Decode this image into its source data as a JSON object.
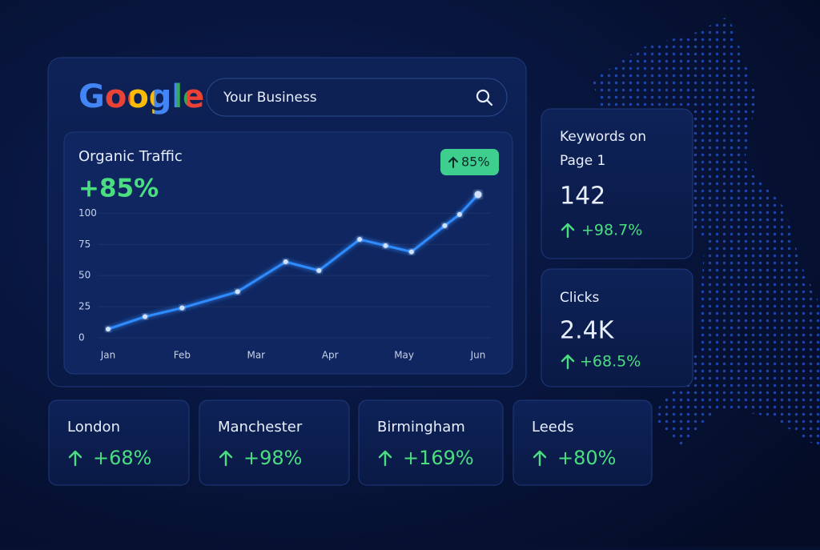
{
  "header": {
    "logo": "Google",
    "search": "Your Business"
  },
  "chart_data": {
    "type": "line",
    "title": "Organic Traffic",
    "subtitle": "+85%",
    "badge": "85%",
    "x": [
      0,
      0.5,
      1,
      1.75,
      2.4,
      2.85,
      3.4,
      3.75,
      4.1,
      4.55,
      4.75,
      5
    ],
    "series": [
      {
        "color": "#2f8cff",
        "values": [
          7,
          17,
          24,
          37,
          61,
          54,
          79,
          74,
          69,
          90,
          99,
          115
        ]
      }
    ],
    "xlim": [
      0,
      5
    ],
    "xticks": [
      {
        "value": 0,
        "label": "Jan"
      },
      {
        "value": 1,
        "label": "Feb"
      },
      {
        "value": 2,
        "label": "Mar"
      },
      {
        "value": 3,
        "label": "Apr"
      },
      {
        "value": 4,
        "label": "May"
      },
      {
        "value": 5,
        "label": "Jun"
      }
    ],
    "ylim": [
      0,
      115
    ],
    "yticks": [
      0,
      25,
      50,
      75,
      100
    ],
    "grid": true
  },
  "stats": [
    {
      "label": "Keywords on",
      "label2": "Page 1",
      "value": "142",
      "change": "+98.7%"
    },
    {
      "label": "Clicks",
      "value": "2.4K",
      "change": "+68.5%"
    }
  ],
  "cities": [
    {
      "name": "London",
      "change": "+68%"
    },
    {
      "name": "Manchester",
      "change": "+98%"
    },
    {
      "name": "Birmingham",
      "change": "+169%"
    },
    {
      "name": "Leeds",
      "change": "+80%"
    }
  ]
}
